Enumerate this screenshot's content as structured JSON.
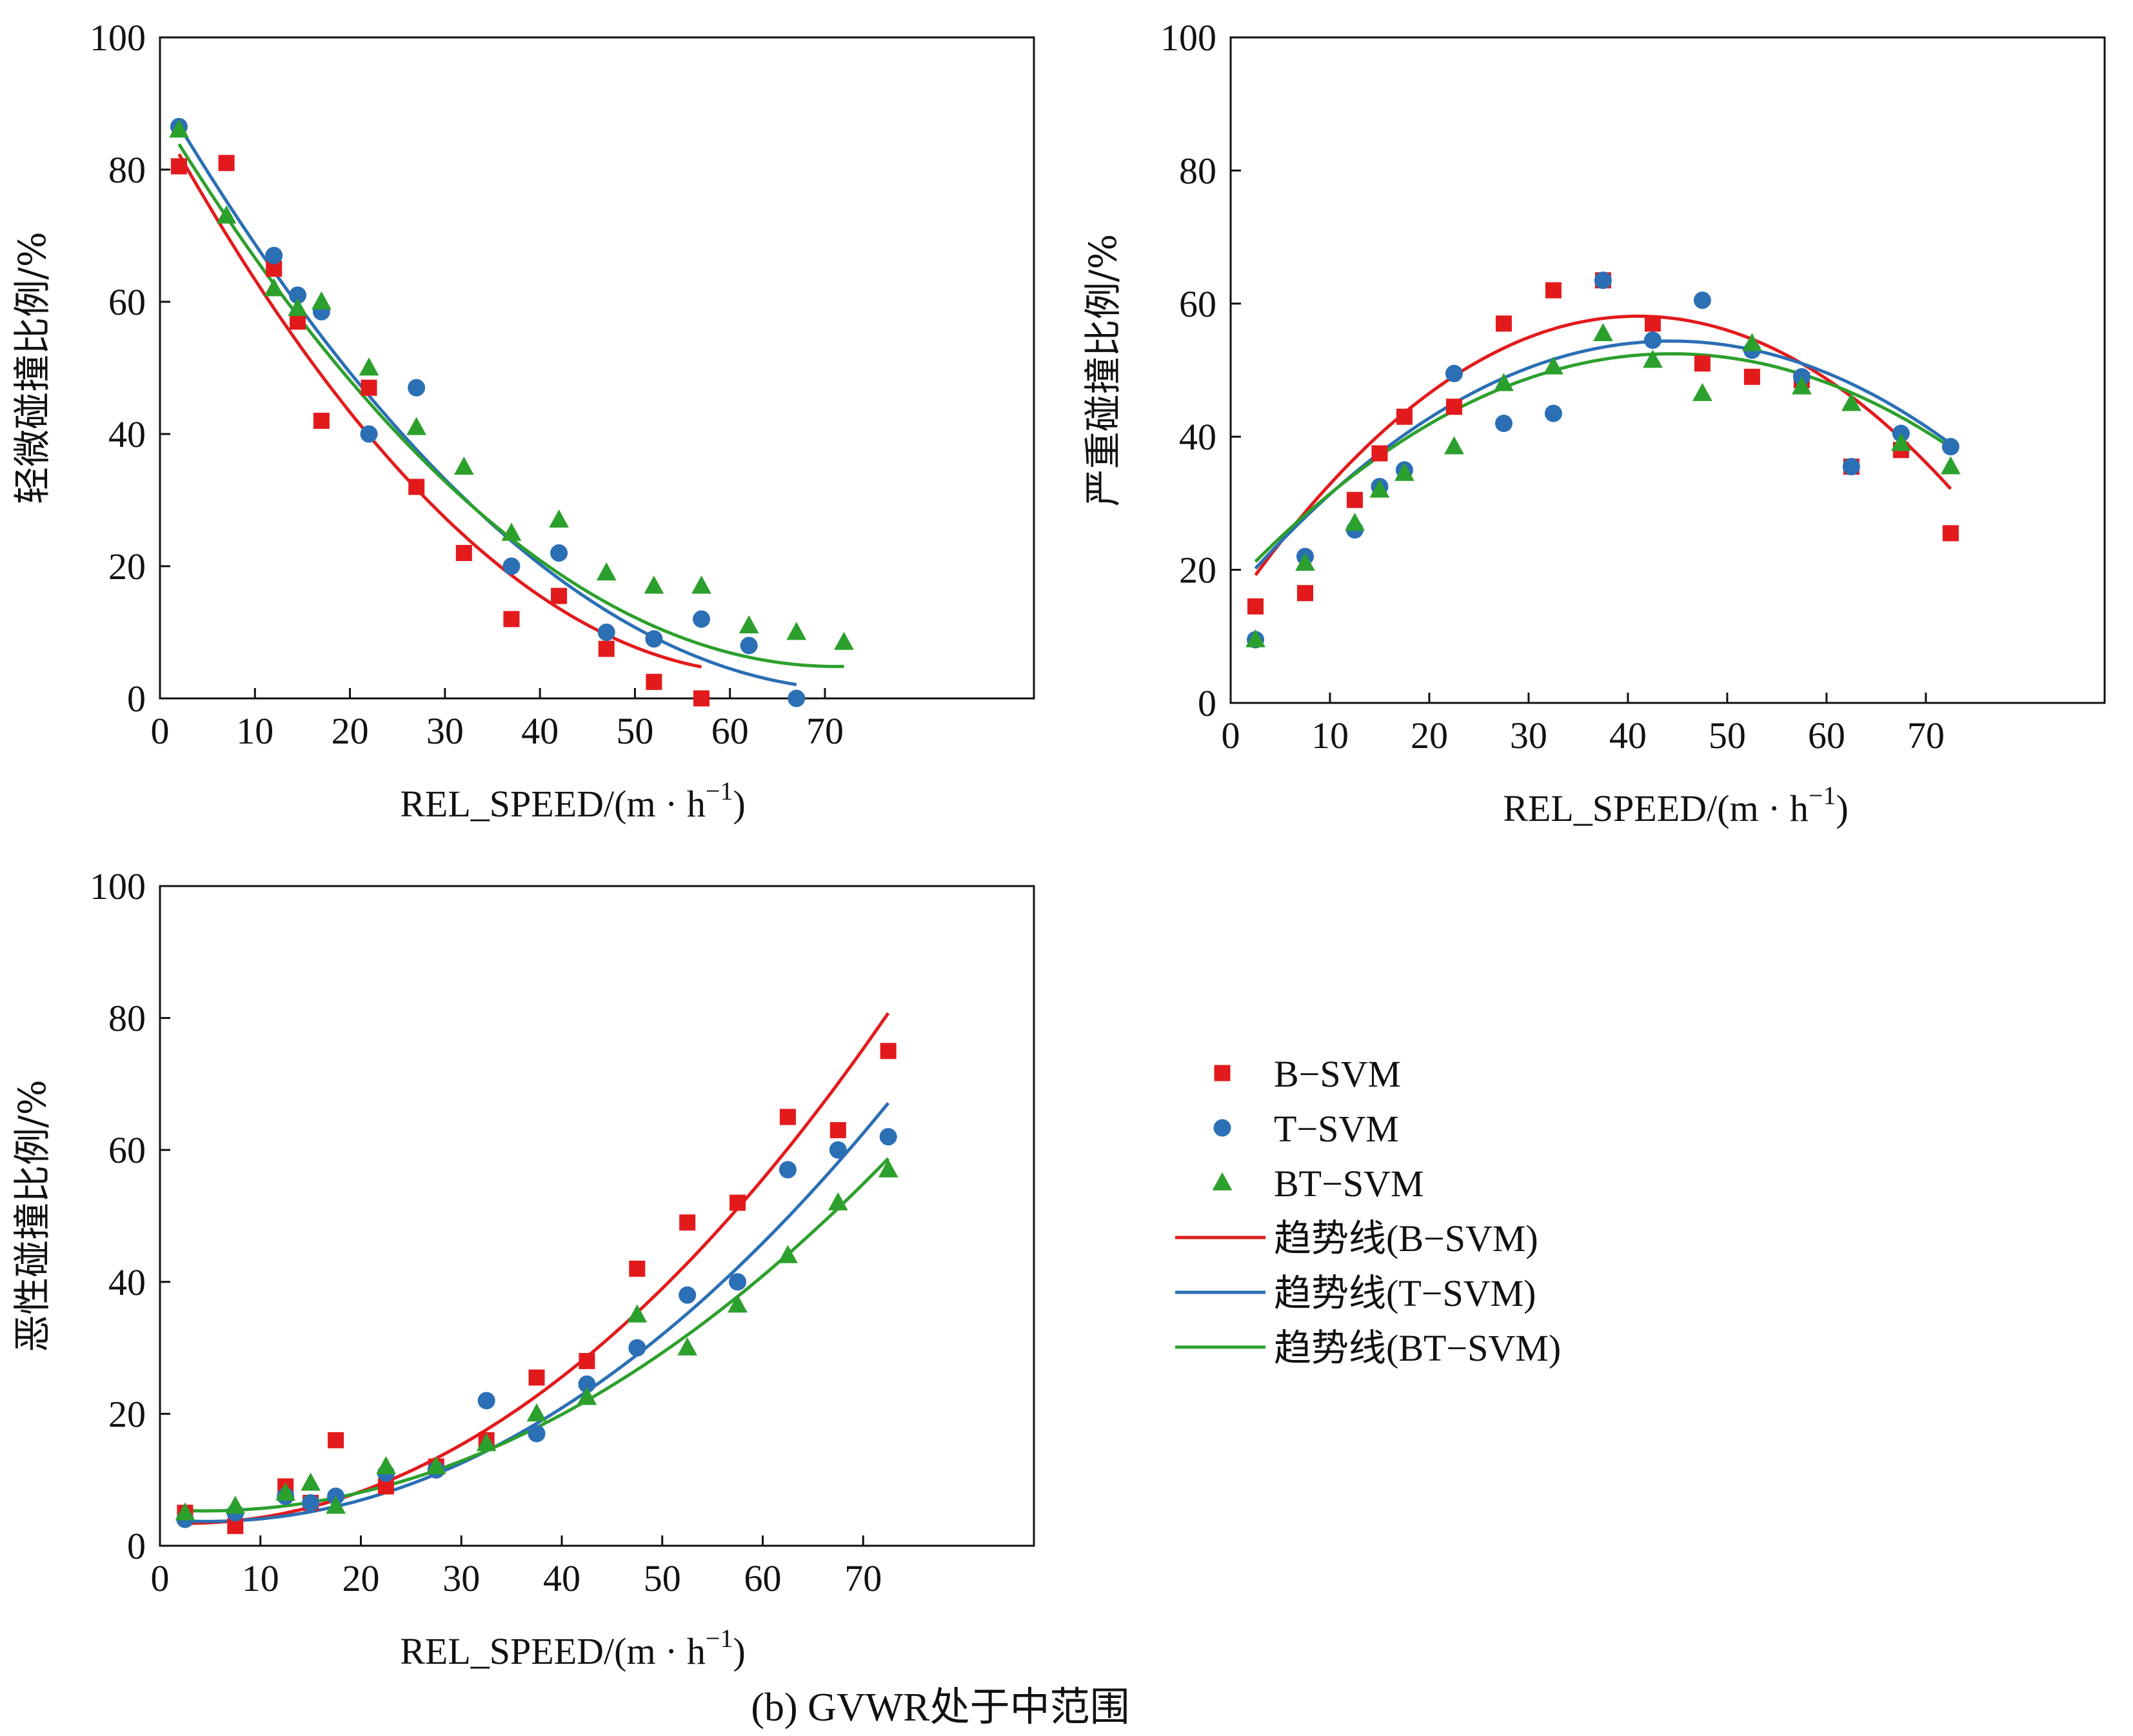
{
  "caption": "(b) GVWR处于中范围",
  "colors": {
    "B": "#e31a1c",
    "T": "#2b6fb5",
    "BT": "#2ca02c"
  },
  "legend": {
    "items": [
      {
        "key": "B",
        "kind": "marker",
        "shape": "square",
        "label": "B−SVM"
      },
      {
        "key": "T",
        "kind": "marker",
        "shape": "circle",
        "label": "T−SVM"
      },
      {
        "key": "BT",
        "kind": "marker",
        "shape": "triangle",
        "label": "BT−SVM"
      },
      {
        "key": "B",
        "kind": "line",
        "label": "趋势线(B−SVM)"
      },
      {
        "key": "T",
        "kind": "line",
        "label": "趋势线(T−SVM)"
      },
      {
        "key": "BT",
        "kind": "line",
        "label": "趋势线(BT−SVM)"
      }
    ]
  },
  "chart_data": [
    {
      "type": "scatter",
      "ylabel": "轻微碰撞比例/%",
      "xlabel": "REL_SPEED/(m·h⁻¹)",
      "xlabel_main": "REL_SPEED/(m · h",
      "xlabel_sup": "−1",
      "xlabel_close": ")",
      "xlim": [
        0,
        92
      ],
      "ylim": [
        0,
        100
      ],
      "xticks": [
        0,
        10,
        20,
        30,
        40,
        50,
        60,
        70
      ],
      "yticks": [
        0,
        20,
        40,
        60,
        80,
        100
      ],
      "series": [
        {
          "key": "B",
          "marker": "square",
          "points": [
            [
              2,
              80.5
            ],
            [
              7,
              81
            ],
            [
              12,
              65
            ],
            [
              14.5,
              57
            ],
            [
              17,
              42
            ],
            [
              22,
              47
            ],
            [
              27,
              32
            ],
            [
              32,
              22
            ],
            [
              37,
              12
            ],
            [
              42,
              15.5
            ],
            [
              47,
              7.5
            ],
            [
              52,
              2.5
            ],
            [
              57,
              0
            ]
          ],
          "trend": [
            0.0205,
            -2.62,
            87.5
          ],
          "trend_range": [
            2,
            57
          ]
        },
        {
          "key": "T",
          "marker": "circle",
          "points": [
            [
              2,
              86.5
            ],
            [
              12,
              67
            ],
            [
              14.5,
              61
            ],
            [
              17,
              58.5
            ],
            [
              22,
              40
            ],
            [
              27,
              47
            ],
            [
              37,
              20
            ],
            [
              42,
              22
            ],
            [
              47,
              10
            ],
            [
              52,
              9
            ],
            [
              57,
              12
            ],
            [
              62,
              8
            ],
            [
              67,
              0
            ]
          ],
          "trend": [
            0.0165,
            -2.44,
            91.5
          ],
          "trend_range": [
            2,
            67
          ]
        },
        {
          "key": "BT",
          "marker": "triangle",
          "points": [
            [
              2,
              86
            ],
            [
              7,
              73
            ],
            [
              12,
              62
            ],
            [
              14.5,
              59
            ],
            [
              17,
              60
            ],
            [
              22,
              50
            ],
            [
              27,
              41
            ],
            [
              32,
              35
            ],
            [
              37,
              25
            ],
            [
              42,
              27
            ],
            [
              47,
              19
            ],
            [
              52,
              17
            ],
            [
              57,
              17
            ],
            [
              62,
              11
            ],
            [
              67,
              10
            ],
            [
              72,
              8.5
            ]
          ],
          "trend": [
            0.0165,
            -2.35,
            88.5
          ],
          "trend_range": [
            2,
            72
          ]
        }
      ]
    },
    {
      "type": "scatter",
      "ylabel": "严重碰撞比例/%",
      "xlabel": "REL_SPEED/(m·h⁻¹)",
      "xlabel_main": "REL_SPEED/(m · h",
      "xlabel_sup": "−1",
      "xlabel_close": ")",
      "xlim": [
        0,
        88
      ],
      "ylim": [
        0,
        100
      ],
      "xticks": [
        0,
        10,
        20,
        30,
        40,
        50,
        60,
        70
      ],
      "yticks": [
        0,
        20,
        40,
        60,
        80,
        100
      ],
      "series": [
        {
          "key": "B",
          "marker": "square",
          "points": [
            [
              2.5,
              14.5
            ],
            [
              7.5,
              16.5
            ],
            [
              12.5,
              30.5
            ],
            [
              15,
              37.5
            ],
            [
              17.5,
              43
            ],
            [
              22.5,
              44.5
            ],
            [
              27.5,
              57
            ],
            [
              32.5,
              62
            ],
            [
              37.5,
              63.5
            ],
            [
              42.5,
              57
            ],
            [
              47.5,
              51
            ],
            [
              52.5,
              49
            ],
            [
              57.5,
              48.5
            ],
            [
              62.5,
              35.5
            ],
            [
              67.5,
              38
            ],
            [
              72.5,
              25.5
            ]
          ],
          "trend": [
            -0.0262,
            2.15,
            14.0
          ],
          "trend_range": [
            2.5,
            72.5
          ]
        },
        {
          "key": "T",
          "marker": "circle",
          "points": [
            [
              2.5,
              9.5
            ],
            [
              7.5,
              22
            ],
            [
              12.5,
              26
            ],
            [
              15,
              32.5
            ],
            [
              17.5,
              35
            ],
            [
              22.5,
              49.5
            ],
            [
              27.5,
              42
            ],
            [
              32.5,
              43.5
            ],
            [
              37.5,
              63.5
            ],
            [
              42.5,
              54.5
            ],
            [
              47.5,
              60.5
            ],
            [
              52.5,
              53
            ],
            [
              57.5,
              49
            ],
            [
              62.5,
              35.5
            ],
            [
              67.5,
              40.5
            ],
            [
              72.5,
              38.5
            ]
          ],
          "trend": [
            -0.0195,
            1.73,
            16.0
          ],
          "trend_range": [
            2.5,
            72.5
          ]
        },
        {
          "key": "BT",
          "marker": "triangle",
          "points": [
            [
              2.5,
              9.5
            ],
            [
              7.5,
              21
            ],
            [
              12.5,
              27
            ],
            [
              15,
              32
            ],
            [
              17.5,
              34.5
            ],
            [
              22.5,
              38.5
            ],
            [
              27.5,
              48
            ],
            [
              32.5,
              50.5
            ],
            [
              37.5,
              55.5
            ],
            [
              42.5,
              51.5
            ],
            [
              47.5,
              46.5
            ],
            [
              52.5,
              54
            ],
            [
              57.5,
              47.5
            ],
            [
              62.5,
              45
            ],
            [
              67.5,
              39
            ],
            [
              72.5,
              35.5
            ]
          ],
          "trend": [
            -0.0178,
            1.58,
            17.4
          ],
          "trend_range": [
            2.5,
            72.5
          ]
        }
      ]
    },
    {
      "type": "scatter",
      "ylabel": "恶性碰撞比例/%",
      "xlabel": "REL_SPEED/(m·h⁻¹)",
      "xlabel_main": "REL_SPEED/(m · h",
      "xlabel_sup": "−1",
      "xlabel_close": ")",
      "xlim": [
        0,
        87
      ],
      "ylim": [
        0,
        100
      ],
      "xticks": [
        0,
        10,
        20,
        30,
        40,
        50,
        60,
        70
      ],
      "yticks": [
        0,
        20,
        40,
        60,
        80,
        100
      ],
      "series": [
        {
          "key": "B",
          "marker": "square",
          "points": [
            [
              2.5,
              5
            ],
            [
              7.5,
              3
            ],
            [
              12.5,
              9
            ],
            [
              15,
              6.5
            ],
            [
              17.5,
              16
            ],
            [
              22.5,
              9
            ],
            [
              27.5,
              12
            ],
            [
              32.5,
              16
            ],
            [
              37.5,
              25.5
            ],
            [
              42.5,
              28
            ],
            [
              47.5,
              42
            ],
            [
              52.5,
              49
            ],
            [
              57.5,
              52
            ],
            [
              62.5,
              65
            ],
            [
              67.5,
              63
            ],
            [
              72.5,
              75
            ]
          ],
          "trend": [
            0.0158,
            -0.08,
            3.5
          ],
          "trend_range": [
            2.5,
            72.5
          ]
        },
        {
          "key": "T",
          "marker": "circle",
          "points": [
            [
              2.5,
              4
            ],
            [
              7.5,
              5
            ],
            [
              12.5,
              7.5
            ],
            [
              15,
              6.5
            ],
            [
              17.5,
              7.5
            ],
            [
              22.5,
              11
            ],
            [
              27.5,
              11.5
            ],
            [
              32.5,
              22
            ],
            [
              37.5,
              17
            ],
            [
              42.5,
              24.5
            ],
            [
              47.5,
              30
            ],
            [
              52.5,
              38
            ],
            [
              57.5,
              40
            ],
            [
              62.5,
              57
            ],
            [
              67.5,
              60
            ],
            [
              72.5,
              62
            ]
          ],
          "trend": [
            0.0138,
            -0.13,
            4.0
          ],
          "trend_range": [
            2.5,
            72.5
          ]
        },
        {
          "key": "BT",
          "marker": "triangle",
          "points": [
            [
              2.5,
              5
            ],
            [
              7.5,
              6
            ],
            [
              12.5,
              8
            ],
            [
              15,
              9.5
            ],
            [
              17.5,
              6
            ],
            [
              22.5,
              12
            ],
            [
              27.5,
              12
            ],
            [
              32.5,
              15.5
            ],
            [
              37.5,
              20
            ],
            [
              42.5,
              22.5
            ],
            [
              47.5,
              35
            ],
            [
              52.5,
              30
            ],
            [
              57.5,
              36.5
            ],
            [
              62.5,
              44
            ],
            [
              67.5,
              52
            ],
            [
              72.5,
              57
            ]
          ],
          "trend": [
            0.0115,
            -0.1,
            5.5
          ],
          "trend_range": [
            2.5,
            72.5
          ]
        }
      ]
    }
  ]
}
